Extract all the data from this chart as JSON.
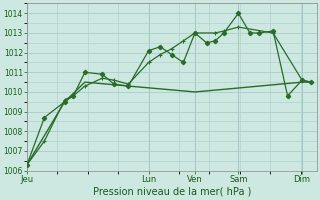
{
  "bg_color": "#cce8e0",
  "grid_color": "#aacccc",
  "line_color": "#2a6b2a",
  "title": "Pression niveau de la mer( hPa )",
  "ylim": [
    1006,
    1014.5
  ],
  "yticks": [
    1006,
    1007,
    1008,
    1009,
    1010,
    1011,
    1012,
    1013,
    1014
  ],
  "day_labels": [
    "Jeu",
    "Lun",
    "Ven",
    "Sam",
    "Dim"
  ],
  "day_positions": [
    0.0,
    0.42,
    0.58,
    0.73,
    0.95
  ],
  "xlim": [
    0,
    1.0
  ],
  "series1_x": [
    0.0,
    0.06,
    0.13,
    0.16,
    0.2,
    0.26,
    0.3,
    0.35,
    0.42,
    0.46,
    0.5,
    0.54,
    0.58,
    0.62,
    0.65,
    0.68,
    0.73,
    0.77,
    0.8,
    0.85,
    0.9,
    0.95,
    0.98
  ],
  "series1_y": [
    1006.3,
    1008.7,
    1009.5,
    1009.8,
    1011.0,
    1010.9,
    1010.4,
    1010.3,
    1012.1,
    1012.3,
    1011.9,
    1011.5,
    1013.0,
    1012.5,
    1012.6,
    1013.0,
    1014.0,
    1013.0,
    1013.0,
    1013.1,
    1009.8,
    1010.6,
    1010.5
  ],
  "series2_x": [
    0.0,
    0.13,
    0.2,
    0.35,
    0.58,
    0.73,
    0.95,
    0.98
  ],
  "series2_y": [
    1006.3,
    1009.5,
    1010.5,
    1010.3,
    1010.0,
    1010.2,
    1010.5,
    1010.5
  ],
  "series3_x": [
    0.0,
    0.06,
    0.13,
    0.16,
    0.2,
    0.26,
    0.3,
    0.35,
    0.42,
    0.46,
    0.5,
    0.54,
    0.58,
    0.65,
    0.68,
    0.73,
    0.85,
    0.95,
    0.98
  ],
  "series3_y": [
    1006.3,
    1007.5,
    1009.6,
    1009.8,
    1010.3,
    1010.7,
    1010.6,
    1010.4,
    1011.5,
    1011.9,
    1012.2,
    1012.6,
    1013.0,
    1013.0,
    1013.1,
    1013.3,
    1013.0,
    1010.6,
    1010.5
  ]
}
